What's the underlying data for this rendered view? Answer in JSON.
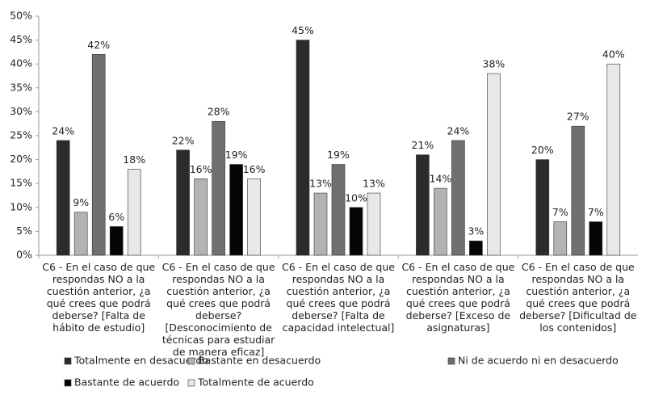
{
  "chart_data": {
    "type": "bar",
    "categories": [
      "C6 - En el caso de que respondas NO a la cuestión anterior, ¿a qué crees que podrá deberse? [Falta de hábito de estudio]",
      "C6 - En el caso de que respondas NO a la cuestión anterior, ¿a qué crees que podrá deberse? [Desconocimiento de técnicas para estudiar de manera eficaz]",
      "C6 - En el caso de que respondas NO a la cuestión anterior, ¿a qué crees que podrá deberse? [Falta de capacidad intelectual]",
      "C6 - En el caso de que respondas NO a la cuestión anterior, ¿a qué crees que podrá deberse? [Exceso de asignaturas]",
      "C6 - En el caso de que respondas NO a la cuestión anterior, ¿a qué crees que podrá deberse? [Dificultad de los contenidos]"
    ],
    "series": [
      {
        "name": "Totalmente en desacuerdo",
        "color": "#2b2b2b",
        "values": [
          24,
          22,
          45,
          21,
          20
        ],
        "value_labels": [
          "24%",
          "22%",
          "45%",
          "21%",
          "20%"
        ]
      },
      {
        "name": "Bastante en desacuerdo",
        "color": "#b3b3b3",
        "values": [
          9,
          16,
          13,
          14,
          7
        ],
        "value_labels": [
          "9%",
          "16%",
          "13%",
          "14%",
          "7%"
        ]
      },
      {
        "name": "Ni de acuerdo ni en desacuerdo",
        "color": "#707070",
        "values": [
          42,
          28,
          19,
          24,
          27
        ],
        "value_labels": [
          "42%",
          "28%",
          "19%",
          "24%",
          "27%"
        ]
      },
      {
        "name": "Bastante de acuerdo",
        "color": "#050505",
        "values": [
          6,
          19,
          10,
          3,
          7
        ],
        "value_labels": [
          "6%",
          "19%",
          "10%",
          "3%",
          "7%"
        ]
      },
      {
        "name": "Totalmente de acuerdo",
        "color": "#e8e8e8",
        "values": [
          18,
          16,
          13,
          38,
          40
        ],
        "value_labels": [
          "18%",
          "16%",
          "13%",
          "38%",
          "40%"
        ]
      }
    ],
    "ylim": [
      0,
      50
    ],
    "yticks": [
      {
        "value": 0,
        "label": "0%"
      },
      {
        "value": 5,
        "label": "5%"
      },
      {
        "value": 10,
        "label": "10%"
      },
      {
        "value": 15,
        "label": "15%"
      },
      {
        "value": 20,
        "label": "20%"
      },
      {
        "value": 25,
        "label": "25%"
      },
      {
        "value": 30,
        "label": "30%"
      },
      {
        "value": 35,
        "label": "35%"
      },
      {
        "value": 40,
        "label": "40%"
      },
      {
        "value": 45,
        "label": "45%"
      },
      {
        "value": 50,
        "label": "50%"
      }
    ],
    "grid": false
  }
}
